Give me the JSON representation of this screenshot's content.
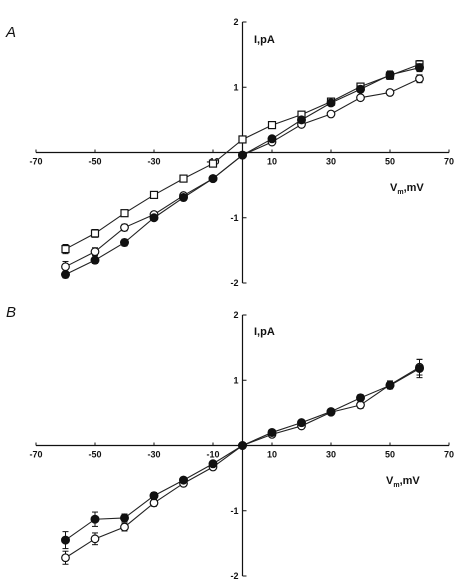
{
  "chart_data": [
    {
      "panel": "A",
      "type": "scatter",
      "xlabel": "V",
      "xlabel_sub": "m",
      "xlabel_unit": ",mV",
      "ylabel": "I,pA",
      "xlim": [
        -70,
        70
      ],
      "ylim": [
        -2,
        2
      ],
      "x_ticks": [
        -70,
        -50,
        -30,
        -10,
        10,
        30,
        50,
        70
      ],
      "y_ticks": [
        2,
        1,
        -1,
        -2
      ],
      "series": [
        {
          "marker": "open-square",
          "x": [
            -60,
            -50,
            -40,
            -30,
            -20,
            -10,
            0,
            10,
            20,
            30,
            40,
            50,
            60
          ],
          "y": [
            -1.48,
            -1.24,
            -0.93,
            -0.65,
            -0.4,
            -0.17,
            0.2,
            0.42,
            0.58,
            0.78,
            1.01,
            1.18,
            1.35
          ],
          "err": [
            0.07,
            0.06,
            0.04,
            0.03,
            0.02,
            0.02,
            0.02,
            0.02,
            0.03,
            0.03,
            0.04,
            0.06,
            0.06
          ]
        },
        {
          "marker": "open-circle",
          "x": [
            -60,
            -50,
            -40,
            -30,
            -20,
            -10,
            0,
            10,
            20,
            30,
            40,
            50,
            60
          ],
          "y": [
            -1.75,
            -1.52,
            -1.15,
            -0.95,
            -0.66,
            -0.4,
            -0.04,
            0.16,
            0.43,
            0.59,
            0.84,
            0.92,
            1.13
          ],
          "err": [
            0.08,
            0.06,
            0.05,
            0.04,
            0.03,
            0.03,
            0.02,
            0.02,
            0.03,
            0.03,
            0.04,
            0.04,
            0.06
          ]
        },
        {
          "marker": "filled-circle",
          "x": [
            -60,
            -50,
            -40,
            -30,
            -20,
            -10,
            0,
            10,
            20,
            30,
            40,
            50,
            60
          ],
          "y": [
            -1.87,
            -1.65,
            -1.38,
            -1.0,
            -0.69,
            -0.4,
            -0.04,
            0.21,
            0.5,
            0.76,
            0.97,
            1.19,
            1.3
          ],
          "err": [
            0.05,
            0.05,
            0.05,
            0.04,
            0.03,
            0.03,
            0.02,
            0.02,
            0.03,
            0.03,
            0.05,
            0.06,
            0.06
          ]
        }
      ]
    },
    {
      "panel": "B",
      "type": "scatter",
      "xlabel": "V",
      "xlabel_sub": "m",
      "xlabel_unit": ",mV",
      "ylabel": "I,pA",
      "xlim": [
        -70,
        70
      ],
      "ylim": [
        -2,
        2
      ],
      "x_ticks": [
        -70,
        -50,
        -30,
        -10,
        10,
        30,
        50,
        70
      ],
      "y_ticks": [
        2,
        1,
        -1,
        -2
      ],
      "series": [
        {
          "marker": "open-circle",
          "x": [
            -60,
            -50,
            -40,
            -30,
            -20,
            -10,
            0,
            10,
            20,
            30,
            40,
            50,
            60
          ],
          "y": [
            -1.72,
            -1.43,
            -1.25,
            -0.88,
            -0.58,
            -0.33,
            0.0,
            0.17,
            0.3,
            0.51,
            0.62,
            0.93,
            1.2
          ],
          "err": [
            0.1,
            0.09,
            0.06,
            0.05,
            0.04,
            0.04,
            0.02,
            0.02,
            0.03,
            0.04,
            0.05,
            0.06,
            0.12
          ]
        },
        {
          "marker": "filled-circle",
          "x": [
            -60,
            -50,
            -40,
            -30,
            -20,
            -10,
            0,
            10,
            20,
            30,
            40,
            50,
            60
          ],
          "y": [
            -1.45,
            -1.13,
            -1.11,
            -0.77,
            -0.53,
            -0.28,
            0.0,
            0.2,
            0.35,
            0.52,
            0.73,
            0.92,
            1.18
          ],
          "err": [
            0.13,
            0.11,
            0.06,
            0.05,
            0.04,
            0.03,
            0.02,
            0.02,
            0.03,
            0.04,
            0.05,
            0.05,
            0.14
          ]
        }
      ]
    }
  ]
}
